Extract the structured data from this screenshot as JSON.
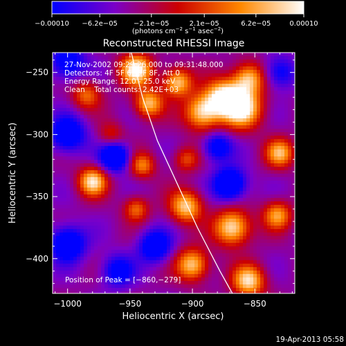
{
  "chart_data": {
    "type": "heatmap",
    "title": "Reconstructed RHESSI Image",
    "xlabel": "Heliocentric X (arcsec)",
    "ylabel": "Heliocentric Y (arcsec)",
    "xlim": [
      -1012,
      -818
    ],
    "ylim": [
      -428,
      -234
    ],
    "x_ticks": [
      -1000,
      -950,
      -900,
      -850
    ],
    "x_tick_labels": [
      "−1000",
      "−950",
      "−900",
      "−850"
    ],
    "y_ticks": [
      -250,
      -300,
      -350,
      -400
    ],
    "y_tick_labels": [
      "−250",
      "−300",
      "−350",
      "−400"
    ],
    "colorbar": {
      "min": -0.0001,
      "max": 0.0001,
      "ticks": [
        -0.0001,
        -6.2e-05,
        -2.1e-05,
        2.1e-05,
        6.2e-05,
        0.0001
      ],
      "tick_labels": [
        "−0.00010",
        "−6.2e−05",
        "−2.1e−05",
        "2.1e−05",
        "6.2e−05",
        "0.00010"
      ],
      "unit_prefix": "(photons cm",
      "unit_exp1": "−2",
      "unit_mid": " s",
      "unit_exp2": "−1",
      "unit_mid2": " asec",
      "unit_exp3": "−2",
      "unit_suffix": ")",
      "colors": [
        "#0000ff",
        "#7b00c8",
        "#cc0000",
        "#ff8800",
        "#ffffff"
      ]
    },
    "annotations": [
      "27-Nov-2002 09:29:26.000 to 09:31:48.000",
      "Detectors: 4F 5F 6F 7F 8F, Att 0",
      "Energy Range: 12.0 - 25.0 keV",
      "Clean    Total counts: 2.42E+03"
    ],
    "peak_label": "Position of Peak = [−860,−279]",
    "peak": [
      -860,
      -279
    ],
    "limb_points": [
      [
        -949,
        -234
      ],
      [
        -940,
        -270
      ],
      [
        -928,
        -305
      ],
      [
        -912,
        -340
      ],
      [
        -896,
        -375
      ],
      [
        -878,
        -410
      ],
      [
        -868,
        -428
      ]
    ],
    "sources": [
      {
        "x": -945,
        "y": -248,
        "amp": 1.0,
        "w": 9
      },
      {
        "x": -935,
        "y": -275,
        "amp": 0.8,
        "w": 8
      },
      {
        "x": -912,
        "y": -258,
        "amp": 0.85,
        "w": 8
      },
      {
        "x": -892,
        "y": -282,
        "amp": 0.9,
        "w": 10
      },
      {
        "x": -875,
        "y": -270,
        "amp": 0.95,
        "w": 10
      },
      {
        "x": -860,
        "y": -279,
        "amp": 1.0,
        "w": 11
      },
      {
        "x": -855,
        "y": -255,
        "amp": 0.8,
        "w": 9
      },
      {
        "x": -830,
        "y": -315,
        "amp": 0.75,
        "w": 8
      },
      {
        "x": -985,
        "y": -268,
        "amp": 0.55,
        "w": 8
      },
      {
        "x": -965,
        "y": -300,
        "amp": 0.35,
        "w": 7
      },
      {
        "x": -980,
        "y": -338,
        "amp": 0.9,
        "w": 8
      },
      {
        "x": -940,
        "y": -325,
        "amp": 0.6,
        "w": 7
      },
      {
        "x": -945,
        "y": -360,
        "amp": 0.55,
        "w": 7
      },
      {
        "x": -905,
        "y": -358,
        "amp": 0.85,
        "w": 9
      },
      {
        "x": -868,
        "y": -375,
        "amp": 0.95,
        "w": 10
      },
      {
        "x": -900,
        "y": -405,
        "amp": 0.85,
        "w": 9
      },
      {
        "x": -855,
        "y": -418,
        "amp": 0.9,
        "w": 9
      },
      {
        "x": -832,
        "y": -365,
        "amp": 0.7,
        "w": 8
      },
      {
        "x": -905,
        "y": -320,
        "amp": 0.45,
        "w": 7
      },
      {
        "x": -1000,
        "y": -242,
        "amp": -0.6,
        "w": 10
      },
      {
        "x": -1000,
        "y": -300,
        "amp": -0.7,
        "w": 10
      },
      {
        "x": -962,
        "y": -318,
        "amp": -0.85,
        "w": 8
      },
      {
        "x": -1000,
        "y": -388,
        "amp": -0.75,
        "w": 10
      },
      {
        "x": -870,
        "y": -340,
        "amp": -0.85,
        "w": 9
      },
      {
        "x": -930,
        "y": -390,
        "amp": -0.7,
        "w": 9
      },
      {
        "x": -880,
        "y": -310,
        "amp": -0.6,
        "w": 8
      },
      {
        "x": -960,
        "y": -410,
        "amp": -0.55,
        "w": 9
      },
      {
        "x": -830,
        "y": -250,
        "amp": -0.5,
        "w": 9
      }
    ]
  },
  "footer": {
    "date": "19-Apr-2013 05:58"
  }
}
